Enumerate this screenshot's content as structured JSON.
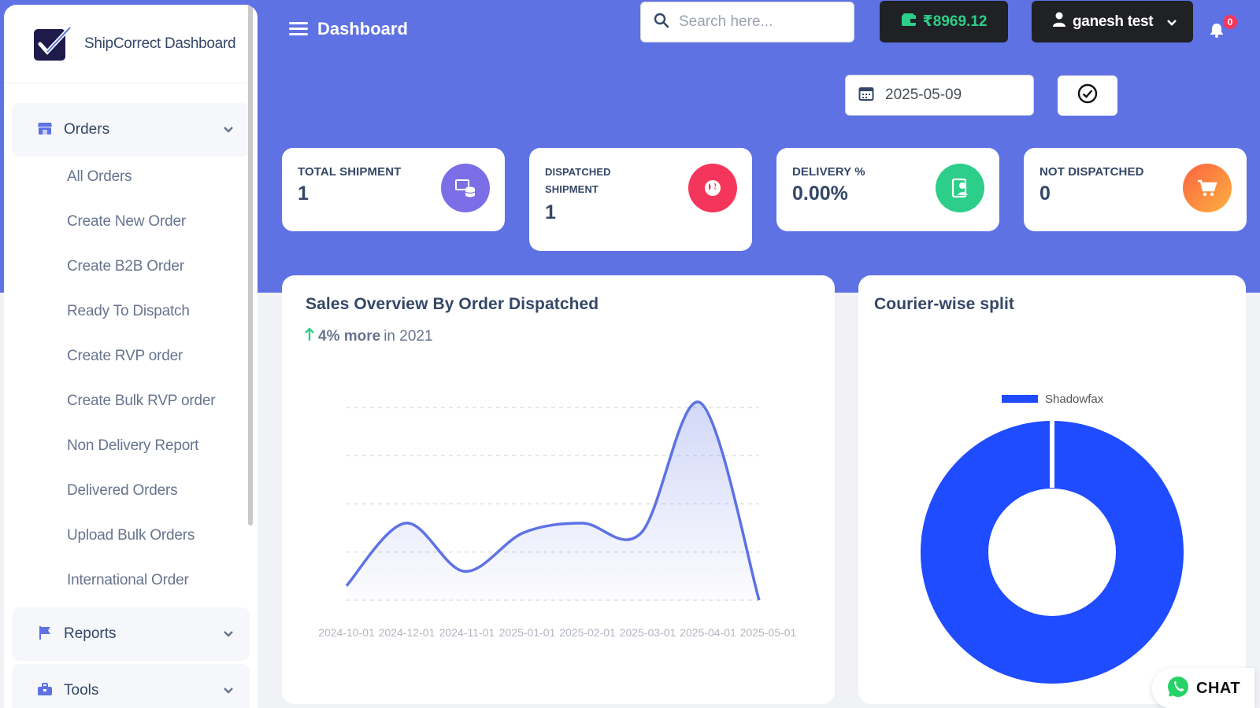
{
  "brand": {
    "name": "ShipCorrect Dashboard"
  },
  "header": {
    "title": "Dashboard",
    "search_placeholder": "Search here...",
    "wallet_balance": "₹8969.12",
    "user_name": "ganesh test",
    "notification_count": "0"
  },
  "filter": {
    "date": "2025-05-09"
  },
  "sidebar": {
    "orders_label": "Orders",
    "orders_items": [
      "All Orders",
      "Create New Order",
      "Create B2B Order",
      "Ready To Dispatch",
      "Create RVP order",
      "Create Bulk RVP order",
      "Non Delivery Report",
      "Delivered Orders",
      "Upload Bulk Orders",
      "International Order"
    ],
    "reports_label": "Reports",
    "tools_label": "Tools"
  },
  "stats": [
    {
      "label": "TOTAL SHIPMENT",
      "value": "1",
      "icon": "database-icon",
      "color": "#7c6ee6"
    },
    {
      "label": "DISPATCHED SHIPMENT",
      "value": "1",
      "icon": "globe-icon",
      "color": "#f5365c"
    },
    {
      "label": "DELIVERY %",
      "value": "0.00%",
      "icon": "badge-icon",
      "color": "#2dce89"
    },
    {
      "label": "NOT DISPATCHED",
      "value": "0",
      "icon": "cart-icon",
      "color": "#fb6340"
    }
  ],
  "sales": {
    "title": "Sales Overview By Order Dispatched",
    "trend_value": "4% more",
    "trend_suffix": "in 2021"
  },
  "courier": {
    "title": "Courier-wise split"
  },
  "chat": {
    "label": "CHAT"
  },
  "chart_data": [
    {
      "type": "area",
      "title": "Sales Overview By Order Dispatched",
      "categories": [
        "2024-10-01",
        "2024-12-01",
        "2024-11-01",
        "2025-01-01",
        "2025-02-01",
        "2025-03-01",
        "2025-04-01",
        "2025-05-01"
      ],
      "values": [
        0.3,
        1.6,
        0.6,
        1.4,
        1.6,
        1.4,
        4.1,
        0
      ],
      "ylim": [
        0,
        4
      ],
      "grid": true,
      "color": "#5e72e4"
    },
    {
      "type": "pie",
      "title": "Courier-wise split",
      "labels": [
        "Shadowfax"
      ],
      "values": [
        1
      ],
      "legend": "top",
      "color": "#1f4cff"
    }
  ]
}
